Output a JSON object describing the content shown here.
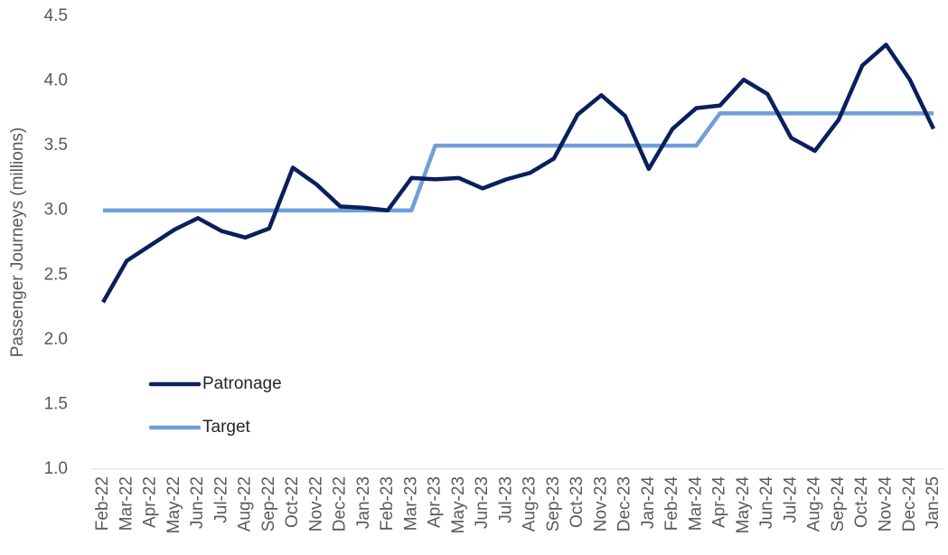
{
  "chart_data": {
    "type": "line",
    "y_label": "Passenger Journeys (millions)",
    "categories": [
      "Feb-22",
      "Mar-22",
      "Apr-22",
      "May-22",
      "Jun-22",
      "Jul-22",
      "Aug-22",
      "Sep-22",
      "Oct-22",
      "Nov-22",
      "Dec-22",
      "Jan-23",
      "Feb-23",
      "Mar-23",
      "Apr-23",
      "May-23",
      "Jun-23",
      "Jul-23",
      "Aug-23",
      "Sep-23",
      "Oct-23",
      "Nov-23",
      "Dec-23",
      "Jan-24",
      "Feb-24",
      "Mar-24",
      "Apr-24",
      "May-24",
      "Jun-24",
      "Jul-24",
      "Aug-24",
      "Sep-24",
      "Oct-24",
      "Nov-24",
      "Dec-24",
      "Jan-25"
    ],
    "series": [
      {
        "name": "Patronage",
        "color": "#0a1f5c",
        "values": [
          2.29,
          2.61,
          2.73,
          2.85,
          2.94,
          2.84,
          2.79,
          2.86,
          3.33,
          3.2,
          3.03,
          3.02,
          3.0,
          3.25,
          3.24,
          3.25,
          3.17,
          3.24,
          3.29,
          3.4,
          3.74,
          3.89,
          3.73,
          3.32,
          3.63,
          3.79,
          3.81,
          4.01,
          3.9,
          3.56,
          3.46,
          3.7,
          4.12,
          4.28,
          4.01,
          3.63
        ]
      },
      {
        "name": "Target",
        "color": "#6f9fd8",
        "values": [
          3.0,
          3.0,
          3.0,
          3.0,
          3.0,
          3.0,
          3.0,
          3.0,
          3.0,
          3.0,
          3.0,
          3.0,
          3.0,
          3.0,
          3.5,
          3.5,
          3.5,
          3.5,
          3.5,
          3.5,
          3.5,
          3.5,
          3.5,
          3.5,
          3.5,
          3.5,
          3.75,
          3.75,
          3.75,
          3.75,
          3.75,
          3.75,
          3.75,
          3.75,
          3.75,
          3.75
        ]
      }
    ],
    "ylim": [
      1.0,
      4.5
    ],
    "yticks": [
      {
        "value": 1,
        "label": "1.0"
      },
      1.5,
      {
        "value": 2,
        "label": "2.0"
      },
      2.5,
      {
        "value": 3,
        "label": "3.0"
      },
      3.5,
      {
        "value": 4,
        "label": "4.0"
      },
      4.5
    ],
    "grid": false
  }
}
